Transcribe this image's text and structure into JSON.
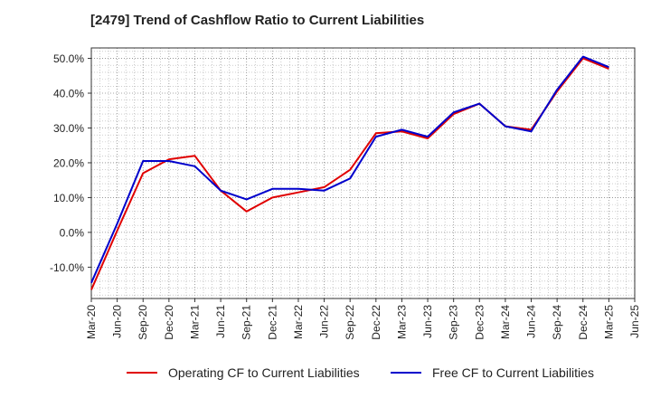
{
  "chart_data": {
    "type": "line",
    "title": "[2479]  Trend of Cashflow Ratio to Current Liabilities",
    "x_tick_labels": [
      "Mar-20",
      "Jun-20",
      "Sep-20",
      "Dec-20",
      "Mar-21",
      "Jun-21",
      "Sep-21",
      "Dec-21",
      "Mar-22",
      "Jun-22",
      "Sep-22",
      "Dec-22",
      "Mar-23",
      "Jun-23",
      "Sep-23",
      "Dec-23",
      "Mar-24",
      "Jun-24",
      "Sep-24",
      "Dec-24",
      "Mar-25",
      "Jun-25"
    ],
    "y_tick_labels": [
      "-10.0%",
      "0.0%",
      "10.0%",
      "20.0%",
      "30.0%",
      "40.0%",
      "50.0%"
    ],
    "y_ticks": [
      -10,
      0,
      10,
      20,
      30,
      40,
      50
    ],
    "ylim": [
      -19,
      53
    ],
    "grid": true,
    "legend_position": "bottom",
    "series": [
      {
        "name": "Operating CF to Current Liabilities",
        "color": "#e00000",
        "values": [
          -16.5,
          0.5,
          17,
          21,
          22,
          12,
          6,
          10,
          11.5,
          13,
          18,
          28.5,
          29,
          27,
          34,
          37,
          30.5,
          29.5,
          40.5,
          50,
          47,
          null
        ]
      },
      {
        "name": "Free CF to Current Liabilities",
        "color": "#0000cc",
        "values": [
          -14.5,
          2.5,
          20.5,
          20.5,
          19,
          12,
          9.5,
          12.5,
          12.5,
          12,
          15.5,
          27.5,
          29.5,
          27.5,
          34.5,
          37,
          30.5,
          29,
          41,
          50.5,
          47.5,
          null
        ]
      }
    ]
  }
}
